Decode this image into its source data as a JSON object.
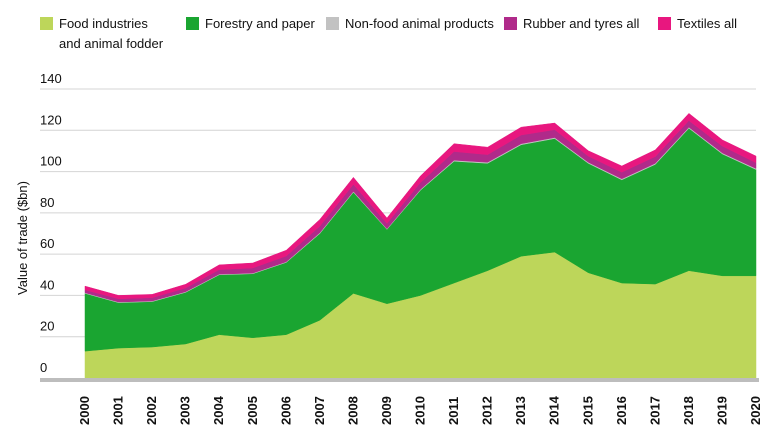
{
  "chart_data": {
    "type": "area",
    "stacked": true,
    "title": "",
    "xlabel": "",
    "ylabel": "Value of trade ($bn)",
    "ylim": [
      0,
      140
    ],
    "yticks": [
      0,
      20,
      40,
      60,
      80,
      100,
      120,
      140
    ],
    "grid": true,
    "legend_position": "top",
    "x": [
      "2000",
      "2001",
      "2002",
      "2003",
      "2004",
      "2005",
      "2006",
      "2007",
      "2008",
      "2009",
      "2010",
      "2011",
      "2012",
      "2013",
      "2014",
      "2015",
      "2016",
      "2017",
      "2018",
      "2019",
      "2020"
    ],
    "series": [
      {
        "name": "Food industries\nand animal fodder",
        "color": "#bdd65a",
        "values": [
          13,
          14.5,
          15,
          16.5,
          21,
          19.5,
          21,
          28,
          41,
          36,
          40,
          46,
          52,
          59,
          61,
          51,
          46,
          45.5,
          52,
          49.5,
          49.5
        ]
      },
      {
        "name": "Forestry and paper",
        "color": "#1aa531",
        "values": [
          28,
          22,
          22,
          25,
          29,
          31,
          35,
          42,
          49,
          36,
          51,
          59,
          52,
          54,
          55,
          53,
          50,
          58,
          69,
          59,
          51.5
        ]
      },
      {
        "name": "Non-food animal products",
        "color": "#c2c2c2",
        "values": [
          0.3,
          0.3,
          0.3,
          0.3,
          0.3,
          0.3,
          0.3,
          0.4,
          0.4,
          0.3,
          0.4,
          0.5,
          0.5,
          0.5,
          0.5,
          0.5,
          0.5,
          0.5,
          0.5,
          0.5,
          0.5
        ]
      },
      {
        "name": "Rubber and tyres all",
        "color": "#b02a8a",
        "values": [
          1.4,
          1.6,
          1.6,
          1.8,
          2.2,
          2.5,
          2.8,
          3.2,
          3.4,
          2.6,
          3.3,
          4.2,
          3.7,
          4.2,
          3.8,
          3.0,
          3.2,
          3.3,
          3.2,
          3.3,
          2.8
        ]
      },
      {
        "name": "Textiles all",
        "color": "#e8177f",
        "values": [
          1.8,
          1.6,
          1.6,
          1.8,
          2.3,
          2.4,
          2.8,
          3.2,
          3.4,
          2.6,
          3.2,
          3.8,
          3.6,
          3.8,
          3.2,
          2.6,
          3.0,
          3.2,
          3.5,
          3.0,
          3.2
        ]
      }
    ]
  }
}
